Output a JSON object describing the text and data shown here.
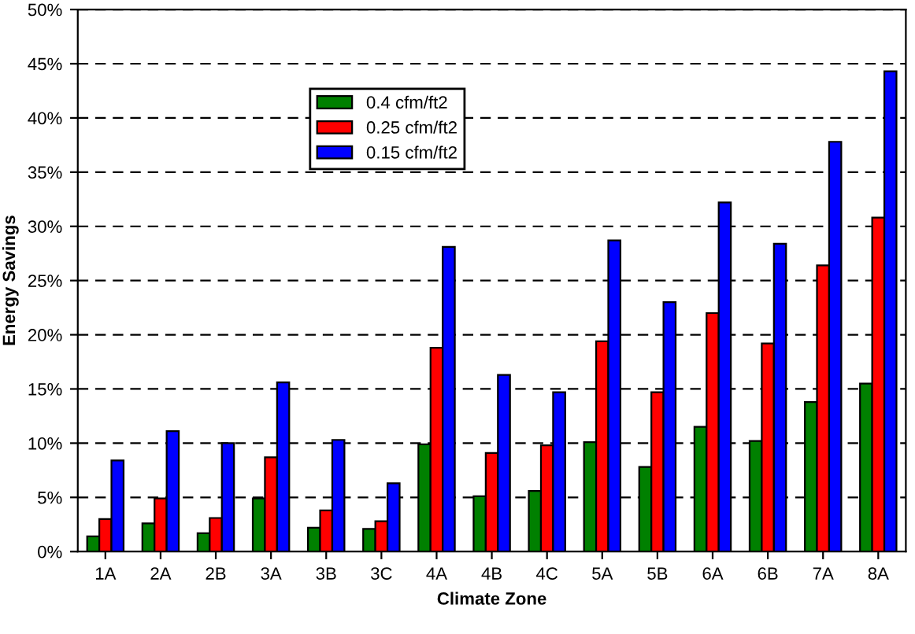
{
  "chart_data": {
    "type": "bar",
    "xlabel": "Climate Zone",
    "ylabel": "Energy Savings",
    "categories": [
      "1A",
      "2A",
      "2B",
      "3A",
      "3B",
      "3C",
      "4A",
      "4B",
      "4C",
      "5A",
      "5B",
      "6A",
      "6B",
      "7A",
      "8A"
    ],
    "series": [
      {
        "name": "0.4 cfm/ft2",
        "color": "#008000",
        "values": [
          1.4,
          2.6,
          1.7,
          4.9,
          2.2,
          2.1,
          9.9,
          5.1,
          5.6,
          10.1,
          7.8,
          11.5,
          10.2,
          13.8,
          15.5
        ]
      },
      {
        "name": "0.25 cfm/ft2",
        "color": "#ff0000",
        "values": [
          3.0,
          4.9,
          3.1,
          8.7,
          3.8,
          2.8,
          18.8,
          9.1,
          9.8,
          19.4,
          14.7,
          22.0,
          19.2,
          26.4,
          30.8
        ]
      },
      {
        "name": "0.15 cfm/ft2",
        "color": "#0000ff",
        "values": [
          8.4,
          11.1,
          10.0,
          15.6,
          10.3,
          6.3,
          28.1,
          16.3,
          14.7,
          28.7,
          23.0,
          32.2,
          28.4,
          37.8,
          44.3
        ]
      }
    ],
    "ylim": [
      0,
      50
    ],
    "yticks": [
      {
        "value": 0,
        "label": "0%"
      },
      {
        "value": 5,
        "label": "5%"
      },
      {
        "value": 10,
        "label": "10%"
      },
      {
        "value": 15,
        "label": "15%"
      },
      {
        "value": 20,
        "label": "20%"
      },
      {
        "value": 25,
        "label": "25%"
      },
      {
        "value": 30,
        "label": "30%"
      },
      {
        "value": 35,
        "label": "35%"
      },
      {
        "value": 40,
        "label": "40%"
      },
      {
        "value": 45,
        "label": "45%"
      },
      {
        "value": 50,
        "label": "50%"
      }
    ],
    "grid": "y",
    "legend": "top left"
  }
}
